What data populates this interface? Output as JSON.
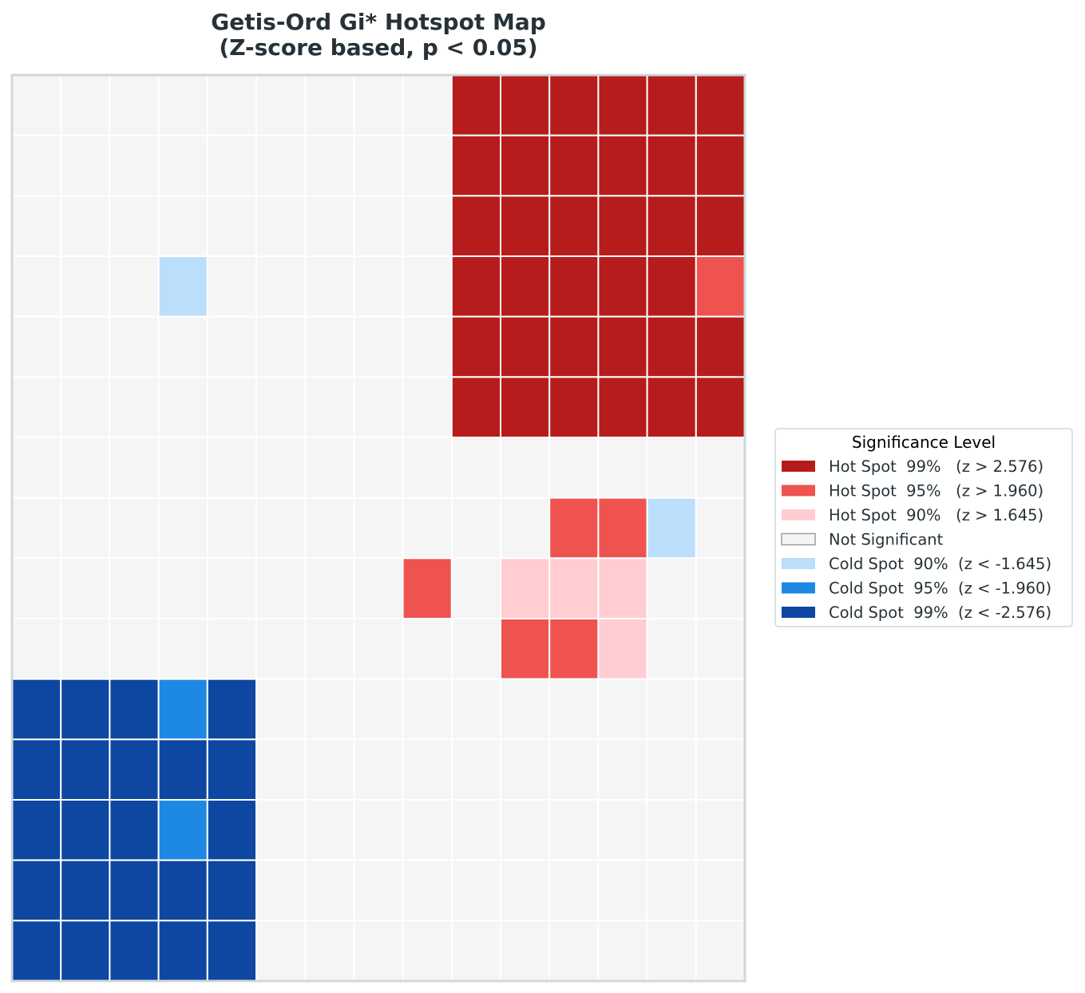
{
  "chart_data": {
    "type": "heatmap",
    "title_line1": "Getis-Ord Gi* Hotspot Map",
    "title_line2": "(Z-score based,  p < 0.05)",
    "xlabel": "",
    "ylabel": "",
    "grid": true,
    "legend_position": "right-center",
    "legend": {
      "title": "Significance Level",
      "entries": [
        {
          "code": 3,
          "label": "Hot Spot  99%   (z > 2.576)",
          "color": "#b71c1c"
        },
        {
          "code": 2,
          "label": "Hot Spot  95%   (z > 1.960)",
          "color": "#ef5350"
        },
        {
          "code": 1,
          "label": "Hot Spot  90%   (z > 1.645)",
          "color": "#ffcdd2"
        },
        {
          "code": 0,
          "label": "Not Significant",
          "color": "#f5f5f5"
        },
        {
          "code": -1,
          "label": "Cold Spot  90%  (z < -1.645)",
          "color": "#bbdefb"
        },
        {
          "code": -2,
          "label": "Cold Spot  95%  (z < -1.960)",
          "color": "#1e88e5"
        },
        {
          "code": -3,
          "label": "Cold Spot  99%  (z < -2.576)",
          "color": "#0d47a1"
        }
      ]
    },
    "rows": 15,
    "cols": 15,
    "grid_values": [
      [
        0,
        0,
        0,
        0,
        0,
        0,
        0,
        0,
        0,
        3,
        3,
        3,
        3,
        3,
        3
      ],
      [
        0,
        0,
        0,
        0,
        0,
        0,
        0,
        0,
        0,
        3,
        3,
        3,
        3,
        3,
        3
      ],
      [
        0,
        0,
        0,
        0,
        0,
        0,
        0,
        0,
        0,
        3,
        3,
        3,
        3,
        3,
        3
      ],
      [
        0,
        0,
        0,
        -1,
        0,
        0,
        0,
        0,
        0,
        3,
        3,
        3,
        3,
        3,
        2
      ],
      [
        0,
        0,
        0,
        0,
        0,
        0,
        0,
        0,
        0,
        3,
        3,
        3,
        3,
        3,
        3
      ],
      [
        0,
        0,
        0,
        0,
        0,
        0,
        0,
        0,
        0,
        3,
        3,
        3,
        3,
        3,
        3
      ],
      [
        0,
        0,
        0,
        0,
        0,
        0,
        0,
        0,
        0,
        0,
        0,
        0,
        0,
        0,
        0
      ],
      [
        0,
        0,
        0,
        0,
        0,
        0,
        0,
        0,
        0,
        0,
        0,
        2,
        2,
        -1,
        0
      ],
      [
        0,
        0,
        0,
        0,
        0,
        0,
        0,
        0,
        2,
        0,
        1,
        1,
        1,
        0,
        0
      ],
      [
        0,
        0,
        0,
        0,
        0,
        0,
        0,
        0,
        0,
        0,
        2,
        2,
        1,
        0,
        0
      ],
      [
        -3,
        -3,
        -3,
        -2,
        -3,
        0,
        0,
        0,
        0,
        0,
        0,
        0,
        0,
        0,
        0
      ],
      [
        -3,
        -3,
        -3,
        -3,
        -3,
        0,
        0,
        0,
        0,
        0,
        0,
        0,
        0,
        0,
        0
      ],
      [
        -3,
        -3,
        -3,
        -2,
        -3,
        0,
        0,
        0,
        0,
        0,
        0,
        0,
        0,
        0,
        0
      ],
      [
        -3,
        -3,
        -3,
        -3,
        -3,
        0,
        0,
        0,
        0,
        0,
        0,
        0,
        0,
        0,
        0
      ],
      [
        -3,
        -3,
        -3,
        -3,
        -3,
        0,
        0,
        0,
        0,
        0,
        0,
        0,
        0,
        0,
        0
      ]
    ]
  }
}
